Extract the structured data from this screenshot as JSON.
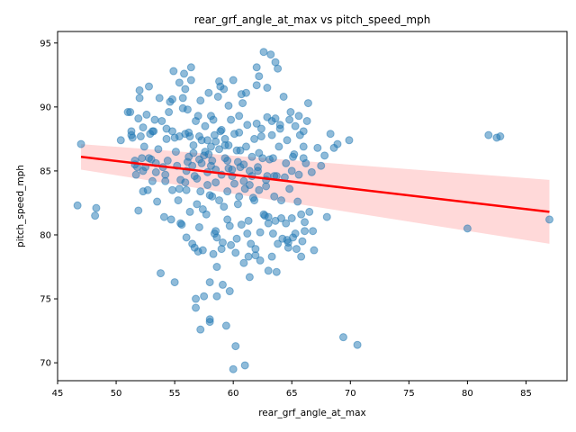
{
  "chart_data": {
    "type": "scatter",
    "title": "rear_grf_angle_at_max vs pitch_speed_mph",
    "xlabel": "rear_grf_angle_at_max",
    "ylabel": "pitch_speed_mph",
    "xlim": [
      45,
      88.5
    ],
    "ylim": [
      68.6,
      95.9
    ],
    "xticks": [
      45,
      50,
      55,
      60,
      65,
      70,
      75,
      80,
      85
    ],
    "yticks": [
      70,
      75,
      80,
      85,
      90,
      95
    ],
    "grid": false,
    "point_color": "#1f77b4",
    "regression": {
      "color": "#ff0000",
      "x": [
        47.0,
        87.0
      ],
      "y": [
        86.1,
        81.8
      ],
      "ci_upper": [
        87.1,
        84.3
      ],
      "ci_lower": [
        85.1,
        79.3
      ]
    },
    "points": [
      [
        46.7,
        82.3
      ],
      [
        47.0,
        87.1
      ],
      [
        48.3,
        82.1
      ],
      [
        48.2,
        81.5
      ],
      [
        50.4,
        87.4
      ],
      [
        51.0,
        89.6
      ],
      [
        51.2,
        89.6
      ],
      [
        51.3,
        88.1
      ],
      [
        51.4,
        87.6
      ],
      [
        51.6,
        85.8
      ],
      [
        51.7,
        84.7
      ],
      [
        51.8,
        85.3
      ],
      [
        51.9,
        81.9
      ],
      [
        51.9,
        89.1
      ],
      [
        52.0,
        90.7
      ],
      [
        52.0,
        91.3
      ],
      [
        52.1,
        87.7
      ],
      [
        52.2,
        86.0
      ],
      [
        52.3,
        88.4
      ],
      [
        52.3,
        83.4
      ],
      [
        52.4,
        86.9
      ],
      [
        52.5,
        85.3
      ],
      [
        52.6,
        89.4
      ],
      [
        52.7,
        83.5
      ],
      [
        52.8,
        91.6
      ],
      [
        52.9,
        87.9
      ],
      [
        53.0,
        85.9
      ],
      [
        53.1,
        84.2
      ],
      [
        53.2,
        88.1
      ],
      [
        53.3,
        89.0
      ],
      [
        53.4,
        85.6
      ],
      [
        53.5,
        82.6
      ],
      [
        53.6,
        86.7
      ],
      [
        53.7,
        90.7
      ],
      [
        53.8,
        77.0
      ],
      [
        53.9,
        88.9
      ],
      [
        54.0,
        85.3
      ],
      [
        54.1,
        81.4
      ],
      [
        54.2,
        84.2
      ],
      [
        54.3,
        87.5
      ],
      [
        54.4,
        85.8
      ],
      [
        54.5,
        89.6
      ],
      [
        54.6,
        90.4
      ],
      [
        54.7,
        81.2
      ],
      [
        54.8,
        88.1
      ],
      [
        54.8,
        83.5
      ],
      [
        54.9,
        92.8
      ],
      [
        55.0,
        76.3
      ],
      [
        55.1,
        86.5
      ],
      [
        55.2,
        85.4
      ],
      [
        55.3,
        82.7
      ],
      [
        55.4,
        91.9
      ],
      [
        55.5,
        84.3
      ],
      [
        55.6,
        80.8
      ],
      [
        55.7,
        90.7
      ],
      [
        55.8,
        92.6
      ],
      [
        55.9,
        87.9
      ],
      [
        56.0,
        85.0
      ],
      [
        56.0,
        83.5
      ],
      [
        56.1,
        89.8
      ],
      [
        56.2,
        86.1
      ],
      [
        56.3,
        81.8
      ],
      [
        56.4,
        93.1
      ],
      [
        56.5,
        79.3
      ],
      [
        56.5,
        85.4
      ],
      [
        56.6,
        87.0
      ],
      [
        56.7,
        84.6
      ],
      [
        56.8,
        74.3
      ],
      [
        56.9,
        82.4
      ],
      [
        57.0,
        89.3
      ],
      [
        57.1,
        87.7
      ],
      [
        57.2,
        83.4
      ],
      [
        57.3,
        85.6
      ],
      [
        57.4,
        78.8
      ],
      [
        57.5,
        75.2
      ],
      [
        57.5,
        86.2
      ],
      [
        57.6,
        88.5
      ],
      [
        57.7,
        81.6
      ],
      [
        57.8,
        84.9
      ],
      [
        57.9,
        91.1
      ],
      [
        58.0,
        76.3
      ],
      [
        58.0,
        73.4
      ],
      [
        58.1,
        86.9
      ],
      [
        58.2,
        83.0
      ],
      [
        58.3,
        89.0
      ],
      [
        58.4,
        80.1
      ],
      [
        58.5,
        87.3
      ],
      [
        58.5,
        85.1
      ],
      [
        58.6,
        77.5
      ],
      [
        58.7,
        90.8
      ],
      [
        58.8,
        82.7
      ],
      [
        58.9,
        88.1
      ],
      [
        59.0,
        84.7
      ],
      [
        59.1,
        79.4
      ],
      [
        59.2,
        91.4
      ],
      [
        59.3,
        86.0
      ],
      [
        59.4,
        72.9
      ],
      [
        59.5,
        83.4
      ],
      [
        59.6,
        87.0
      ],
      [
        59.7,
        80.7
      ],
      [
        59.8,
        89.0
      ],
      [
        59.9,
        85.1
      ],
      [
        60.0,
        69.5
      ],
      [
        60.0,
        92.1
      ],
      [
        60.1,
        84.0
      ],
      [
        60.2,
        78.6
      ],
      [
        60.3,
        86.6
      ],
      [
        60.4,
        82.4
      ],
      [
        60.5,
        88.0
      ],
      [
        60.6,
        85.3
      ],
      [
        60.7,
        80.8
      ],
      [
        60.8,
        90.3
      ],
      [
        60.9,
        77.8
      ],
      [
        61.0,
        83.6
      ],
      [
        61.0,
        69.8
      ],
      [
        61.1,
        86.9
      ],
      [
        61.2,
        88.6
      ],
      [
        61.3,
        81.1
      ],
      [
        61.4,
        85.0
      ],
      [
        61.5,
        79.3
      ],
      [
        61.6,
        84.6
      ],
      [
        61.7,
        82.9
      ],
      [
        61.8,
        87.5
      ],
      [
        61.9,
        78.4
      ],
      [
        62.0,
        93.1
      ],
      [
        62.0,
        91.7
      ],
      [
        62.1,
        85.3
      ],
      [
        62.2,
        83.5
      ],
      [
        62.3,
        80.2
      ],
      [
        62.4,
        88.3
      ],
      [
        62.5,
        86.0
      ],
      [
        62.6,
        94.3
      ],
      [
        62.7,
        81.5
      ],
      [
        62.8,
        84.3
      ],
      [
        62.9,
        89.2
      ],
      [
        63.0,
        77.2
      ],
      [
        63.1,
        85.9
      ],
      [
        63.2,
        94.1
      ],
      [
        63.3,
        87.8
      ],
      [
        63.4,
        80.1
      ],
      [
        63.5,
        83.0
      ],
      [
        63.6,
        89.1
      ],
      [
        63.7,
        84.6
      ],
      [
        63.8,
        79.3
      ],
      [
        63.9,
        86.9
      ],
      [
        64.0,
        88.3
      ],
      [
        64.1,
        82.7
      ],
      [
        64.2,
        79.7
      ],
      [
        64.3,
        90.8
      ],
      [
        64.4,
        84.5
      ],
      [
        64.5,
        80.9
      ],
      [
        64.6,
        87.4
      ],
      [
        64.7,
        79.0
      ],
      [
        64.8,
        83.6
      ],
      [
        64.9,
        89.6
      ],
      [
        65.0,
        85.0
      ],
      [
        65.0,
        81.3
      ],
      [
        65.1,
        79.8
      ],
      [
        65.2,
        86.3
      ],
      [
        65.3,
        88.5
      ],
      [
        65.4,
        78.9
      ],
      [
        65.5,
        82.6
      ],
      [
        65.6,
        84.7
      ],
      [
        65.7,
        87.8
      ],
      [
        65.8,
        81.6
      ],
      [
        65.9,
        79.5
      ],
      [
        66.0,
        86.9
      ],
      [
        66.1,
        80.3
      ],
      [
        66.2,
        85.6
      ],
      [
        66.3,
        88.9
      ],
      [
        66.4,
        90.3
      ],
      [
        66.5,
        81.8
      ],
      [
        66.7,
        84.9
      ],
      [
        66.9,
        78.8
      ],
      [
        67.2,
        86.8
      ],
      [
        67.5,
        85.4
      ],
      [
        67.8,
        86.2
      ],
      [
        68.0,
        81.4
      ],
      [
        68.3,
        87.9
      ],
      [
        68.6,
        86.8
      ],
      [
        68.9,
        87.1
      ],
      [
        69.4,
        72.0
      ],
      [
        69.9,
        87.4
      ],
      [
        70.6,
        71.4
      ],
      [
        80.0,
        80.5
      ],
      [
        81.8,
        87.8
      ],
      [
        82.5,
        87.6
      ],
      [
        82.8,
        87.7
      ],
      [
        87.0,
        81.2
      ],
      [
        56.2,
        88.0
      ],
      [
        56.8,
        88.9
      ],
      [
        57.3,
        87.4
      ],
      [
        57.9,
        86.3
      ],
      [
        58.4,
        87.8
      ],
      [
        59.0,
        88.2
      ],
      [
        59.5,
        85.8
      ],
      [
        60.1,
        87.9
      ],
      [
        60.6,
        86.6
      ],
      [
        57.1,
        85.9
      ],
      [
        58.8,
        86.7
      ],
      [
        57.6,
        86.5
      ],
      [
        59.3,
        87.5
      ],
      [
        58.1,
        85.4
      ],
      [
        56.6,
        86.4
      ],
      [
        60.4,
        85.7
      ],
      [
        61.6,
        86.1
      ],
      [
        62.4,
        87.7
      ],
      [
        59.9,
        84.6
      ],
      [
        58.5,
        84.1
      ],
      [
        57.8,
        83.9
      ],
      [
        56.9,
        84.4
      ],
      [
        55.9,
        84.1
      ],
      [
        60.9,
        84.2
      ],
      [
        61.4,
        83.9
      ],
      [
        62.8,
        83.8
      ],
      [
        63.5,
        84.6
      ],
      [
        62.1,
        85.0
      ],
      [
        62.6,
        81.6
      ],
      [
        63.0,
        80.9
      ],
      [
        61.2,
        80.1
      ],
      [
        60.3,
        79.7
      ],
      [
        59.0,
        78.9
      ],
      [
        57.1,
        80.6
      ],
      [
        58.3,
        78.5
      ],
      [
        56.7,
        79.0
      ],
      [
        59.5,
        81.2
      ],
      [
        61.9,
        78.9
      ],
      [
        63.3,
        78.3
      ],
      [
        64.6,
        79.6
      ],
      [
        65.8,
        78.3
      ],
      [
        60.7,
        91.0
      ],
      [
        58.8,
        92.0
      ],
      [
        57.2,
        90.5
      ],
      [
        55.7,
        89.9
      ],
      [
        59.6,
        90.1
      ],
      [
        58.1,
        89.3
      ],
      [
        62.2,
        92.4
      ],
      [
        63.6,
        93.5
      ],
      [
        62.9,
        91.5
      ],
      [
        61.1,
        91.1
      ],
      [
        55.9,
        91.4
      ],
      [
        54.8,
        90.6
      ],
      [
        56.4,
        92.1
      ],
      [
        58.9,
        91.6
      ],
      [
        63.8,
        93.0
      ],
      [
        59.7,
        75.6
      ],
      [
        58.0,
        73.2
      ],
      [
        57.2,
        72.6
      ],
      [
        59.1,
        76.1
      ],
      [
        56.8,
        75.0
      ],
      [
        58.6,
        75.2
      ],
      [
        60.2,
        71.3
      ],
      [
        63.0,
        81.4
      ],
      [
        64.1,
        81.3
      ],
      [
        63.6,
        81.1
      ],
      [
        62.9,
        84.6
      ],
      [
        61.8,
        82.7
      ],
      [
        60.5,
        83.0
      ],
      [
        59.2,
        82.2
      ],
      [
        58.0,
        83.1
      ],
      [
        57.4,
        82.0
      ],
      [
        55.4,
        83.6
      ],
      [
        54.2,
        84.7
      ],
      [
        53.4,
        84.9
      ],
      [
        52.3,
        85.0
      ],
      [
        52.8,
        86.0
      ],
      [
        51.6,
        85.5
      ],
      [
        51.3,
        87.8
      ],
      [
        53.1,
        88.1
      ],
      [
        54.3,
        88.3
      ],
      [
        55.4,
        87.7
      ],
      [
        56.1,
        85.7
      ],
      [
        58.2,
        85.8
      ],
      [
        59.6,
        85.2
      ],
      [
        60.9,
        85.5
      ],
      [
        62.2,
        86.4
      ],
      [
        63.4,
        86.0
      ],
      [
        64.5,
        85.6
      ],
      [
        65.1,
        86.1
      ],
      [
        66.0,
        86.0
      ],
      [
        64.0,
        88.6
      ],
      [
        64.8,
        89.0
      ],
      [
        65.6,
        89.3
      ],
      [
        66.0,
        88.1
      ],
      [
        63.3,
        88.9
      ],
      [
        62.0,
        88.7
      ],
      [
        60.5,
        89.3
      ],
      [
        59.3,
        87.0
      ],
      [
        57.8,
        87.4
      ],
      [
        56.3,
        87.7
      ],
      [
        55.0,
        87.6
      ],
      [
        61.4,
        76.7
      ],
      [
        61.3,
        78.3
      ],
      [
        62.3,
        78.0
      ],
      [
        63.7,
        77.1
      ],
      [
        64.7,
        79.4
      ],
      [
        65.3,
        80.1
      ],
      [
        66.1,
        81.0
      ],
      [
        66.8,
        80.3
      ],
      [
        59.8,
        79.2
      ],
      [
        58.6,
        79.8
      ],
      [
        57.0,
        78.7
      ],
      [
        56.0,
        79.8
      ],
      [
        55.5,
        80.9
      ],
      [
        58.5,
        80.3
      ]
    ]
  }
}
